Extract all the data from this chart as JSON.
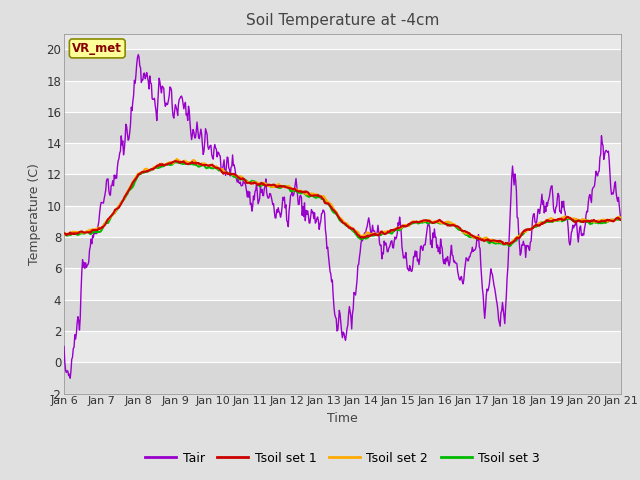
{
  "title": "Soil Temperature at -4cm",
  "xlabel": "Time",
  "ylabel": "Temperature (C)",
  "ylim": [
    -2,
    21
  ],
  "yticks": [
    -2,
    0,
    2,
    4,
    6,
    8,
    10,
    12,
    14,
    16,
    18,
    20
  ],
  "xlim": [
    0,
    360
  ],
  "xtick_labels": [
    "Jan 6",
    "Jan 7",
    "Jan 8",
    "Jan 9",
    "Jan 10",
    "Jan 11",
    "Jan 12",
    "Jan 13",
    "Jan 14",
    "Jan 15",
    "Jan 16",
    "Jan 17",
    "Jan 18",
    "Jan 19",
    "Jan 20",
    "Jan 21"
  ],
  "xtick_positions": [
    0,
    24,
    48,
    72,
    96,
    120,
    144,
    168,
    192,
    216,
    240,
    264,
    288,
    312,
    336,
    360
  ],
  "colors": {
    "Tair": "#9900cc",
    "Tsoil1": "#cc0000",
    "Tsoil2": "#ffaa00",
    "Tsoil3": "#00bb00"
  },
  "legend_labels": [
    "Tair",
    "Tsoil set 1",
    "Tsoil set 2",
    "Tsoil set 3"
  ],
  "annotation_text": "VR_met",
  "annotation_color": "#880000",
  "annotation_bg": "#ffff99",
  "band_dark": "#d8d8d8",
  "band_light": "#e8e8e8",
  "fig_bg": "#e0e0e0",
  "title_color": "#444444",
  "linewidth_tair": 1.0,
  "linewidth_tsoil": 1.5
}
